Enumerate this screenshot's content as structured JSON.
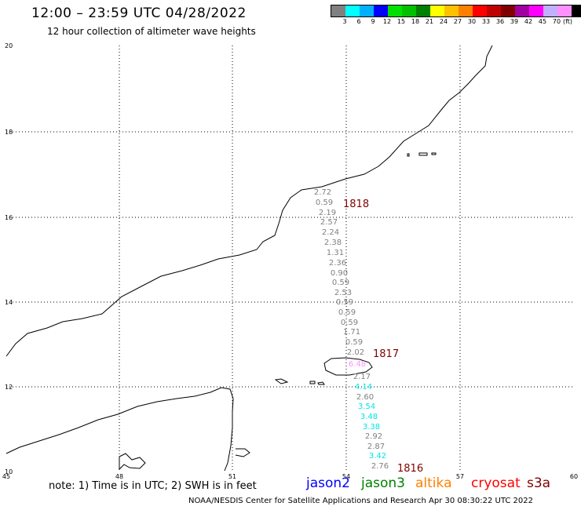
{
  "header": {
    "title": "12:00 – 23:59 UTC 04/28/2022",
    "subtitle": "12 hour collection of altimeter wave heights"
  },
  "colorbar": {
    "colors": [
      "#808080",
      "#00ffff",
      "#00b0ff",
      "#0000ff",
      "#00e000",
      "#00c000",
      "#008000",
      "#ffff00",
      "#ffc000",
      "#ff8000",
      "#ff0000",
      "#c00000",
      "#800000",
      "#a000a0",
      "#ff00ff",
      "#c0b0ff",
      "#ff90ff",
      "#000000"
    ],
    "labels": [
      "3",
      "6",
      "9",
      "12",
      "15",
      "18",
      "21",
      "24",
      "27",
      "30",
      "33",
      "36",
      "39",
      "42",
      "45",
      "70"
    ],
    "unit": "(ft)"
  },
  "axes": {
    "lat_labels": [
      "20",
      "18",
      "16",
      "14",
      "12",
      "10"
    ],
    "lon_labels": [
      "45",
      "48",
      "51",
      "54",
      "57",
      "60"
    ]
  },
  "track": {
    "swh_values": [
      {
        "v": "2.72",
        "c": "#808080"
      },
      {
        "v": "0.59",
        "c": "#808080"
      },
      {
        "v": "2.19",
        "c": "#808080"
      },
      {
        "v": "2.57",
        "c": "#808080"
      },
      {
        "v": "2.24",
        "c": "#808080"
      },
      {
        "v": "2.38",
        "c": "#808080"
      },
      {
        "v": "1.31",
        "c": "#808080"
      },
      {
        "v": "2.36",
        "c": "#808080"
      },
      {
        "v": "0.90",
        "c": "#808080"
      },
      {
        "v": "0.59",
        "c": "#808080"
      },
      {
        "v": "2.53",
        "c": "#808080"
      },
      {
        "v": "0.59",
        "c": "#808080"
      },
      {
        "v": "0.59",
        "c": "#808080"
      },
      {
        "v": "0.59",
        "c": "#808080"
      },
      {
        "v": "1.71",
        "c": "#808080"
      },
      {
        "v": "0.59",
        "c": "#808080"
      },
      {
        "v": "2.02",
        "c": "#808080"
      },
      {
        "v": "6.48",
        "c": "#ff90ff"
      },
      {
        "v": "2.17",
        "c": "#808080"
      },
      {
        "v": "4.14",
        "c": "#00e5e5"
      },
      {
        "v": "2.60",
        "c": "#808080"
      },
      {
        "v": "3.54",
        "c": "#00e5e5"
      },
      {
        "v": "3.48",
        "c": "#00e5e5"
      },
      {
        "v": "3.38",
        "c": "#00e5e5"
      },
      {
        "v": "2.92",
        "c": "#808080"
      },
      {
        "v": "2.87",
        "c": "#808080"
      },
      {
        "v": "3.42",
        "c": "#00e5e5"
      },
      {
        "v": "2.76",
        "c": "#808080"
      }
    ],
    "times": [
      "1818",
      "1817",
      "1816"
    ],
    "time_color": "#800000"
  },
  "note": "note: 1) Time is in UTC; 2) SWH is in feet",
  "satellites": [
    {
      "name": "jason2",
      "color": "#0000ff"
    },
    {
      "name": "jason3",
      "color": "#008000"
    },
    {
      "name": "altika",
      "color": "#ff8000"
    },
    {
      "name": "cryosat",
      "color": "#ff0000"
    },
    {
      "name": "s3a",
      "color": "#800000"
    }
  ],
  "footer": "NOAA/NESDIS Center for Satellite Applications and Research    Apr 30 08:30:22 UTC 2022"
}
